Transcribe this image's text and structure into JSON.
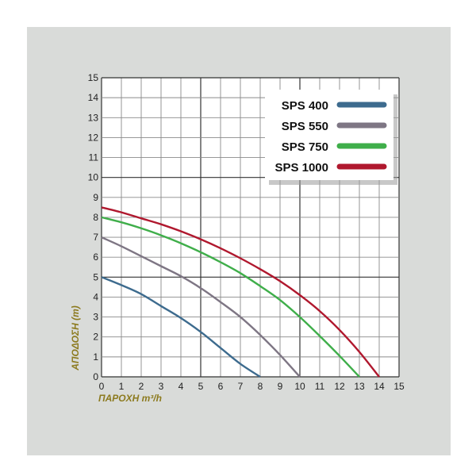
{
  "chart_data": {
    "type": "line",
    "xlabel": "ΠΑΡΟΧΗ m³/h",
    "ylabel": "ΑΠΟΔΟΣΗ (m)",
    "xlim": [
      0,
      15
    ],
    "ylim": [
      0,
      15
    ],
    "x_ticks": [
      0,
      1,
      2,
      3,
      4,
      5,
      6,
      7,
      8,
      9,
      10,
      11,
      12,
      13,
      14,
      15
    ],
    "y_ticks": [
      0,
      1,
      2,
      3,
      4,
      5,
      6,
      7,
      8,
      9,
      10,
      11,
      12,
      13,
      14,
      15
    ],
    "grid": true,
    "legend_position": "top-right",
    "series": [
      {
        "name": "SPS 400",
        "color": "#3d6b8e",
        "x": [
          0,
          1,
          2,
          3,
          4,
          5,
          6,
          7,
          8
        ],
        "y": [
          5.0,
          4.6,
          4.15,
          3.55,
          2.95,
          2.25,
          1.45,
          0.65,
          0.0
        ]
      },
      {
        "name": "SPS 550",
        "color": "#7e7684",
        "x": [
          0,
          1,
          2,
          3,
          4,
          5,
          6,
          7,
          8,
          9,
          10
        ],
        "y": [
          7.0,
          6.55,
          6.05,
          5.55,
          5.05,
          4.45,
          3.75,
          3.0,
          2.1,
          1.1,
          0.0
        ]
      },
      {
        "name": "SPS 750",
        "color": "#3fae4a",
        "x": [
          0,
          1,
          2,
          3,
          4,
          5,
          6,
          7,
          8,
          9,
          10,
          11,
          12,
          13
        ],
        "y": [
          8.0,
          7.75,
          7.45,
          7.1,
          6.7,
          6.25,
          5.75,
          5.2,
          4.55,
          3.85,
          3.0,
          2.05,
          1.05,
          0.0
        ]
      },
      {
        "name": "SPS 1000",
        "color": "#b0182e",
        "x": [
          0,
          1,
          2,
          3,
          4,
          5,
          6,
          7,
          8,
          9,
          10,
          11,
          12,
          13,
          14
        ],
        "y": [
          8.5,
          8.25,
          7.95,
          7.65,
          7.3,
          6.9,
          6.45,
          5.95,
          5.4,
          4.8,
          4.1,
          3.3,
          2.35,
          1.25,
          0.0
        ]
      }
    ]
  }
}
